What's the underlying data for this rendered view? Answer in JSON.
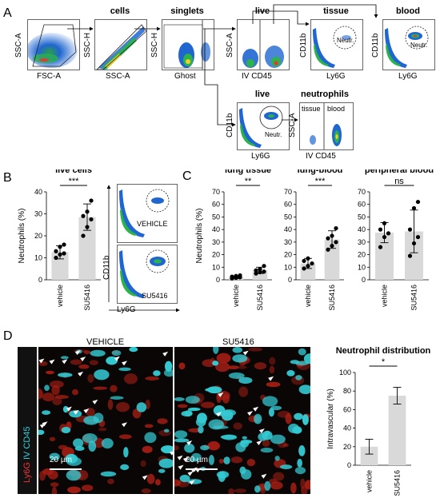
{
  "panels": {
    "A": {
      "letter": "A",
      "plots": [
        {
          "id": "all",
          "title": "",
          "x": "FSC-A",
          "y": "SSC-A"
        },
        {
          "id": "cells",
          "title": "cells",
          "x": "SSC-A",
          "y": "SSC-H"
        },
        {
          "id": "singlets",
          "title": "singlets",
          "x": "Ghost",
          "y": "SSC-H"
        },
        {
          "id": "live",
          "title": "live",
          "x": "IV CD45",
          "y": "SSC-A"
        },
        {
          "id": "tissue",
          "title": "tissue",
          "x": "Ly6G",
          "y": "CD11b",
          "gate": "Neutr."
        },
        {
          "id": "blood",
          "title": "blood",
          "x": "Ly6G",
          "y": "CD11b",
          "gate": "Neutr."
        },
        {
          "id": "live2",
          "title": "live",
          "x": "Ly6G",
          "y": "CD11b",
          "gate": "Neutr."
        },
        {
          "id": "neutrophils",
          "title": "neutrophils",
          "x": "IV CD45",
          "y": "SSC-A",
          "left_gate": "tissue",
          "right_gate": "blood"
        }
      ]
    },
    "B": {
      "letter": "B",
      "title": "live cells",
      "ylabel": "Neutrophils (%)",
      "sig": "***",
      "facs_x": "Ly6G",
      "facs_y": "CD11b",
      "facs_labels": [
        "VEHICLE",
        "SU5416"
      ]
    },
    "C": {
      "letter": "C",
      "ylabel": "Neutrophils (%)"
    },
    "D": {
      "letter": "D",
      "micro_labels": [
        "VEHICLE",
        "SU5416"
      ],
      "scale_bar": "20 µm",
      "channel_red": "Ly6G",
      "channel_cyan": "IV CD45",
      "chart_title": "Neutrophil distribution",
      "ylabel": "Intravascular (%)",
      "sig": "*"
    }
  },
  "chart_data": [
    {
      "type": "bar",
      "panel": "B",
      "title": "live cells",
      "categories": [
        "vehicle",
        "SU5416"
      ],
      "values": [
        12.5,
        28.5
      ],
      "errors": [
        3,
        6
      ],
      "points": [
        [
          10,
          11.5,
          12,
          13,
          15,
          16
        ],
        [
          20,
          24,
          27.5,
          29,
          31,
          36
        ]
      ],
      "ylabel": "Neutrophils (%)",
      "ylim": [
        0,
        40
      ],
      "yticks": [
        0,
        10,
        20,
        30,
        40
      ],
      "sig": "***"
    },
    {
      "type": "bar",
      "panel": "C",
      "title": "lung tissue",
      "categories": [
        "vehicle",
        "SU5416"
      ],
      "values": [
        2,
        7.5
      ],
      "errors": [
        1,
        2.5
      ],
      "points": [
        [
          1,
          1.5,
          2,
          2.5,
          3,
          3.5
        ],
        [
          5,
          6,
          6.5,
          7.5,
          8.5,
          11
        ]
      ],
      "ylabel": "Neutrophils (%)",
      "ylim": [
        0,
        70
      ],
      "yticks": [
        0,
        10,
        20,
        30,
        40,
        50,
        60,
        70
      ],
      "sig": "**"
    },
    {
      "type": "bar",
      "panel": "C",
      "title": "lung-blood",
      "categories": [
        "vehicle",
        "SU5416"
      ],
      "values": [
        13,
        32
      ],
      "errors": [
        4,
        7
      ],
      "points": [
        [
          9,
          11,
          13,
          15,
          17
        ],
        [
          24,
          27,
          30,
          33,
          35,
          41
        ]
      ],
      "ylim": [
        0,
        70
      ],
      "yticks": [
        0,
        10,
        20,
        30,
        40,
        50,
        60,
        70
      ],
      "sig": "***"
    },
    {
      "type": "bar",
      "panel": "C",
      "title": "peripheral blood",
      "categories": [
        "vehicle",
        "SU5416"
      ],
      "values": [
        37.5,
        38.5
      ],
      "errors": [
        8,
        17
      ],
      "points": [
        [
          26,
          34,
          37,
          40,
          45
        ],
        [
          19,
          29,
          34,
          40,
          57,
          62
        ]
      ],
      "ylim": [
        0,
        70
      ],
      "yticks": [
        0,
        10,
        20,
        30,
        40,
        50,
        60,
        70
      ],
      "sig": "ns"
    },
    {
      "type": "bar",
      "panel": "D",
      "title": "Neutrophil distribution",
      "categories": [
        "vehicle",
        "SU5416"
      ],
      "values": [
        20,
        75
      ],
      "errors": [
        8,
        9
      ],
      "ylabel": "Intravascular (%)",
      "ylim": [
        0,
        100
      ],
      "yticks": [
        0,
        20,
        40,
        60,
        80,
        100
      ],
      "sig": "*"
    }
  ]
}
